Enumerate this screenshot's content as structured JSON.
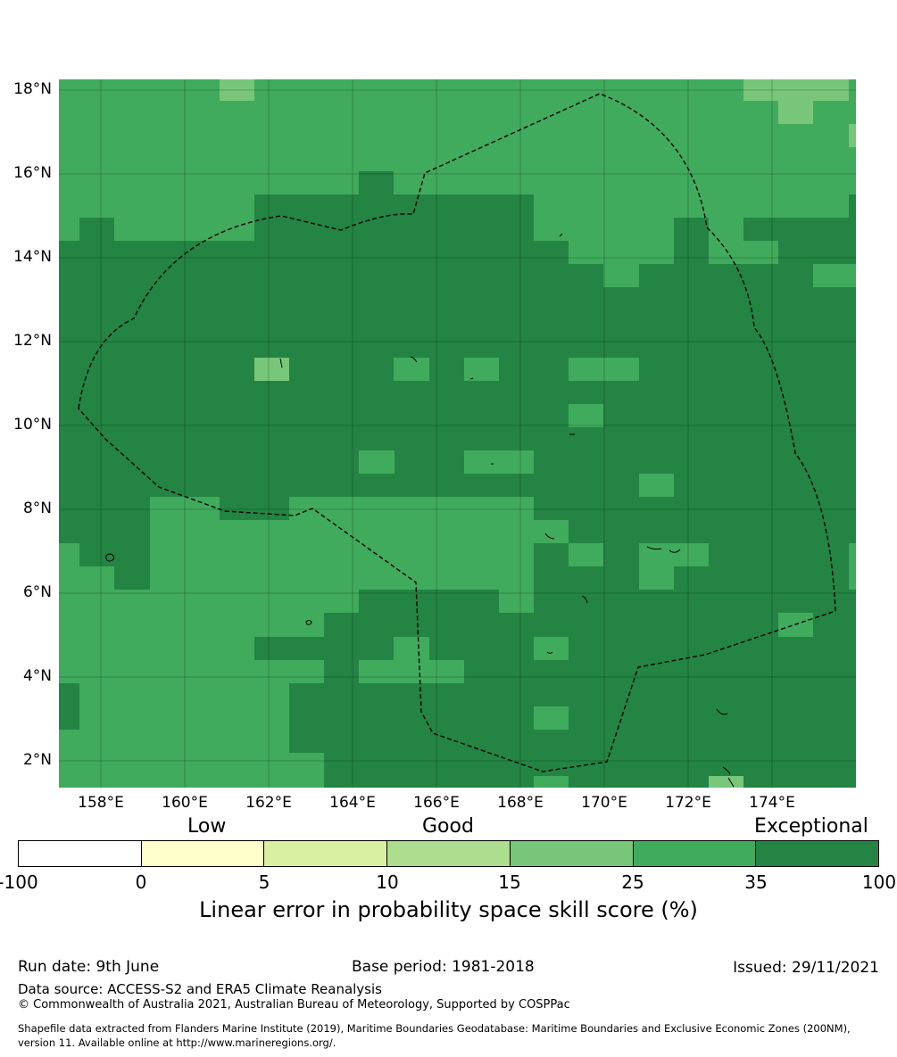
{
  "map": {
    "lat_labels": [
      "18°N",
      "16°N",
      "14°N",
      "12°N",
      "10°N",
      "8°N",
      "6°N",
      "4°N",
      "2°N"
    ],
    "lon_labels": [
      "158°E",
      "160°E",
      "162°E",
      "164°E",
      "166°E",
      "168°E",
      "170°E",
      "172°E",
      "174°E"
    ],
    "extent": {
      "lon": [
        157.0,
        176.0
      ],
      "lat": [
        1.4,
        18.3
      ]
    },
    "grid_lines": true,
    "boundary_style": "dashed black (EEZ)"
  },
  "legend": {
    "category_words": [
      "Low",
      "Good",
      "Exceptional"
    ],
    "ticks": [
      "-100",
      "0",
      "5",
      "10",
      "15",
      "25",
      "35",
      "100"
    ],
    "colors": [
      "#ffffff",
      "#ffffcc",
      "#d9f0a3",
      "#addd8e",
      "#78c679",
      "#41ab5d",
      "#238443"
    ],
    "title": "Linear error in probability space skill score (%)"
  },
  "footer": {
    "run_date": "Run date: 9th June",
    "base_period": "Base period: 1981-2018",
    "issued": "Issued: 29/11/2021",
    "data_source": "Data source: ACCESS-S2 and ERA5 Climate Reanalysis",
    "copyright": "© Commonwealth of Australia 2021, Australian Bureau of Meteorology, Supported by COSPPac",
    "shapefile_line1": "Shapefile data extracted from Flanders Marine Institute (2019), Maritime Boundaries Geodatabase: Maritime Boundaries and Exclusive Economic Zones (200NM),",
    "shapefile_line2": "version 11. Available online at http://www.marineregions.org/."
  }
}
